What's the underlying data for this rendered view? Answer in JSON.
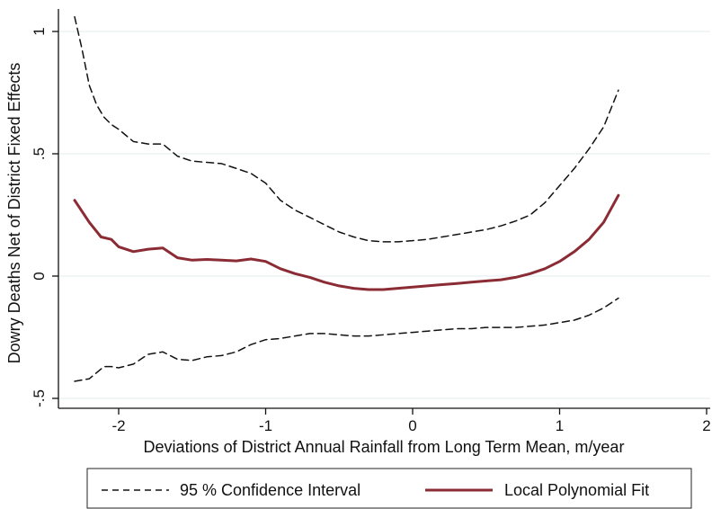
{
  "chart_data": {
    "type": "line",
    "title": "",
    "xlabel": "Deviations of District Annual Rainfall from Long Term Mean, m/year",
    "ylabel": "Dowry Deaths Net of District Fixed Effects",
    "xlim": [
      -2.4,
      2.0
    ],
    "ylim": [
      -0.5,
      1.1
    ],
    "x_ticks": [
      -2,
      -1,
      0,
      1,
      2
    ],
    "x_tick_labels": [
      "-2",
      "-1",
      "0",
      "1",
      "2"
    ],
    "y_ticks": [
      -0.5,
      0,
      0.5,
      1
    ],
    "y_tick_labels": [
      "-.5",
      "0",
      ".5",
      "1"
    ],
    "grid": "horizontal",
    "legend_position": "bottom",
    "series": [
      {
        "name": "Local Polynomial Fit",
        "color": "#8b2c35",
        "style": "solid",
        "x": [
          -2.3,
          -2.2,
          -2.12,
          -2.05,
          -2.0,
          -1.9,
          -1.8,
          -1.7,
          -1.6,
          -1.5,
          -1.4,
          -1.3,
          -1.2,
          -1.1,
          -1.0,
          -0.9,
          -0.8,
          -0.7,
          -0.6,
          -0.5,
          -0.4,
          -0.3,
          -0.2,
          -0.1,
          0.0,
          0.1,
          0.2,
          0.3,
          0.4,
          0.5,
          0.6,
          0.7,
          0.8,
          0.9,
          1.0,
          1.1,
          1.2,
          1.3,
          1.4
        ],
        "y": [
          0.31,
          0.22,
          0.16,
          0.15,
          0.12,
          0.1,
          0.11,
          0.115,
          0.075,
          0.065,
          0.068,
          0.065,
          0.062,
          0.07,
          0.06,
          0.03,
          0.01,
          -0.005,
          -0.025,
          -0.04,
          -0.05,
          -0.055,
          -0.055,
          -0.05,
          -0.045,
          -0.04,
          -0.035,
          -0.03,
          -0.025,
          -0.02,
          -0.015,
          -0.005,
          0.01,
          0.03,
          0.06,
          0.1,
          0.15,
          0.22,
          0.33
        ]
      },
      {
        "name": "95 % Confidence Interval",
        "color": "#111111",
        "style": "dashed",
        "x": [
          -2.3,
          -2.25,
          -2.2,
          -2.15,
          -2.1,
          -2.05,
          -2.0,
          -1.9,
          -1.8,
          -1.7,
          -1.6,
          -1.5,
          -1.4,
          -1.3,
          -1.2,
          -1.1,
          -1.0,
          -0.9,
          -0.8,
          -0.7,
          -0.6,
          -0.5,
          -0.4,
          -0.3,
          -0.2,
          -0.1,
          0.0,
          0.1,
          0.2,
          0.3,
          0.4,
          0.5,
          0.6,
          0.7,
          0.8,
          0.9,
          1.0,
          1.1,
          1.2,
          1.3,
          1.4
        ],
        "y": [
          1.06,
          0.93,
          0.78,
          0.7,
          0.65,
          0.62,
          0.6,
          0.55,
          0.54,
          0.54,
          0.49,
          0.47,
          0.465,
          0.46,
          0.44,
          0.42,
          0.38,
          0.31,
          0.27,
          0.24,
          0.21,
          0.18,
          0.16,
          0.145,
          0.14,
          0.14,
          0.145,
          0.15,
          0.16,
          0.17,
          0.18,
          0.19,
          0.205,
          0.225,
          0.25,
          0.3,
          0.37,
          0.44,
          0.52,
          0.61,
          0.76
        ]
      },
      {
        "name": "95 % Confidence Interval",
        "color": "#111111",
        "style": "dashed",
        "x": [
          -2.3,
          -2.2,
          -2.1,
          -2.05,
          -2.0,
          -1.9,
          -1.8,
          -1.7,
          -1.6,
          -1.5,
          -1.4,
          -1.3,
          -1.2,
          -1.1,
          -1.0,
          -0.9,
          -0.8,
          -0.7,
          -0.6,
          -0.5,
          -0.4,
          -0.3,
          -0.2,
          -0.1,
          0.0,
          0.1,
          0.2,
          0.3,
          0.4,
          0.5,
          0.6,
          0.7,
          0.8,
          0.9,
          1.0,
          1.1,
          1.2,
          1.3,
          1.4
        ],
        "y": [
          -0.43,
          -0.42,
          -0.37,
          -0.37,
          -0.375,
          -0.36,
          -0.32,
          -0.31,
          -0.34,
          -0.345,
          -0.33,
          -0.325,
          -0.31,
          -0.28,
          -0.26,
          -0.255,
          -0.245,
          -0.235,
          -0.235,
          -0.24,
          -0.245,
          -0.245,
          -0.24,
          -0.235,
          -0.23,
          -0.225,
          -0.22,
          -0.215,
          -0.215,
          -0.21,
          -0.21,
          -0.21,
          -0.205,
          -0.2,
          -0.19,
          -0.18,
          -0.16,
          -0.13,
          -0.09
        ]
      }
    ],
    "legend": [
      {
        "label": "95 % Confidence Interval",
        "style": "dashed",
        "color": "#111111"
      },
      {
        "label": "Local Polynomial Fit",
        "style": "solid",
        "color": "#8b2c35"
      }
    ],
    "gridline_color": "#dfeceb"
  }
}
